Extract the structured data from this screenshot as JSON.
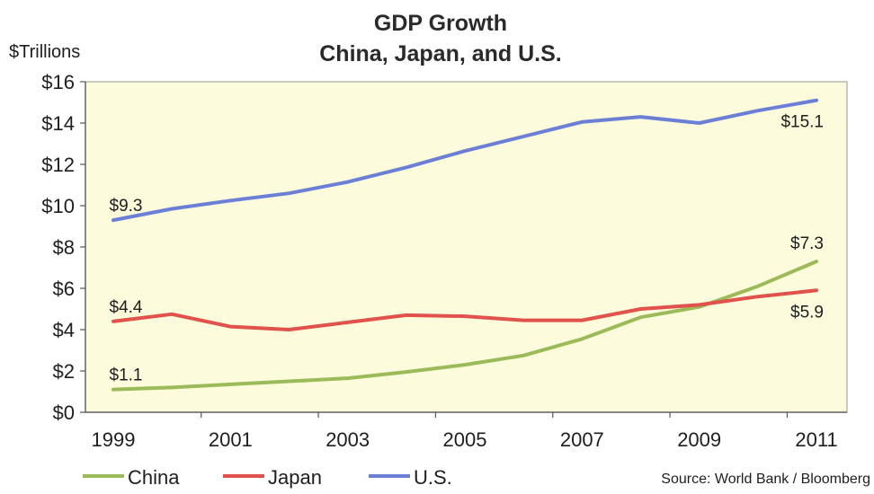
{
  "chart_data": {
    "type": "line",
    "title": "GDP Growth",
    "subtitle": "China, Japan, and U.S.",
    "ylabel": "$Trillions",
    "xlabel": "",
    "ylim": [
      0,
      16
    ],
    "xlim": [
      1999,
      2011
    ],
    "y_ticks": [
      0,
      2,
      4,
      6,
      8,
      10,
      12,
      14,
      16
    ],
    "y_tick_labels": [
      "$0",
      "$2",
      "$4",
      "$6",
      "$8",
      "$10",
      "$12",
      "$14",
      "$16"
    ],
    "x_ticks": [
      1999,
      2001,
      2003,
      2005,
      2007,
      2009,
      2011
    ],
    "x_tick_labels": [
      "1999",
      "2001",
      "2003",
      "2005",
      "2007",
      "2009",
      "2011"
    ],
    "x": [
      1999,
      2000,
      2001,
      2002,
      2003,
      2004,
      2005,
      2006,
      2007,
      2008,
      2009,
      2010,
      2011
    ],
    "series": [
      {
        "name": "China",
        "color": "#9bbb59",
        "values": [
          1.1,
          1.2,
          1.35,
          1.5,
          1.65,
          1.95,
          2.3,
          2.75,
          3.55,
          4.6,
          5.1,
          6.1,
          7.3
        ]
      },
      {
        "name": "Japan",
        "color": "#e0524b",
        "values": [
          4.4,
          4.75,
          4.15,
          4.0,
          4.35,
          4.7,
          4.65,
          4.45,
          4.45,
          5.0,
          5.2,
          5.6,
          5.9
        ]
      },
      {
        "name": "U.S.",
        "color": "#6b7fd6",
        "values": [
          9.3,
          9.85,
          10.25,
          10.6,
          11.15,
          11.85,
          12.65,
          13.35,
          14.05,
          14.3,
          14.0,
          14.6,
          15.1
        ]
      }
    ],
    "annotations": [
      {
        "text": "$9.3",
        "x": 1999,
        "y": 9.3,
        "series": "U.S."
      },
      {
        "text": "$15.1",
        "x": 2011,
        "y": 15.1,
        "series": "U.S."
      },
      {
        "text": "$4.4",
        "x": 1999,
        "y": 4.4,
        "series": "Japan"
      },
      {
        "text": "$5.9",
        "x": 2011,
        "y": 5.9,
        "series": "Japan"
      },
      {
        "text": "$1.1",
        "x": 1999,
        "y": 1.1,
        "series": "China"
      },
      {
        "text": "$7.3",
        "x": 2011,
        "y": 7.3,
        "series": "China"
      }
    ],
    "grid": false,
    "plot_background": "#fcfbdc",
    "legend": {
      "placement": "bottom-left",
      "entries": [
        "China",
        "Japan",
        "U.S."
      ]
    },
    "source": "Source: World Bank / Bloomberg"
  }
}
